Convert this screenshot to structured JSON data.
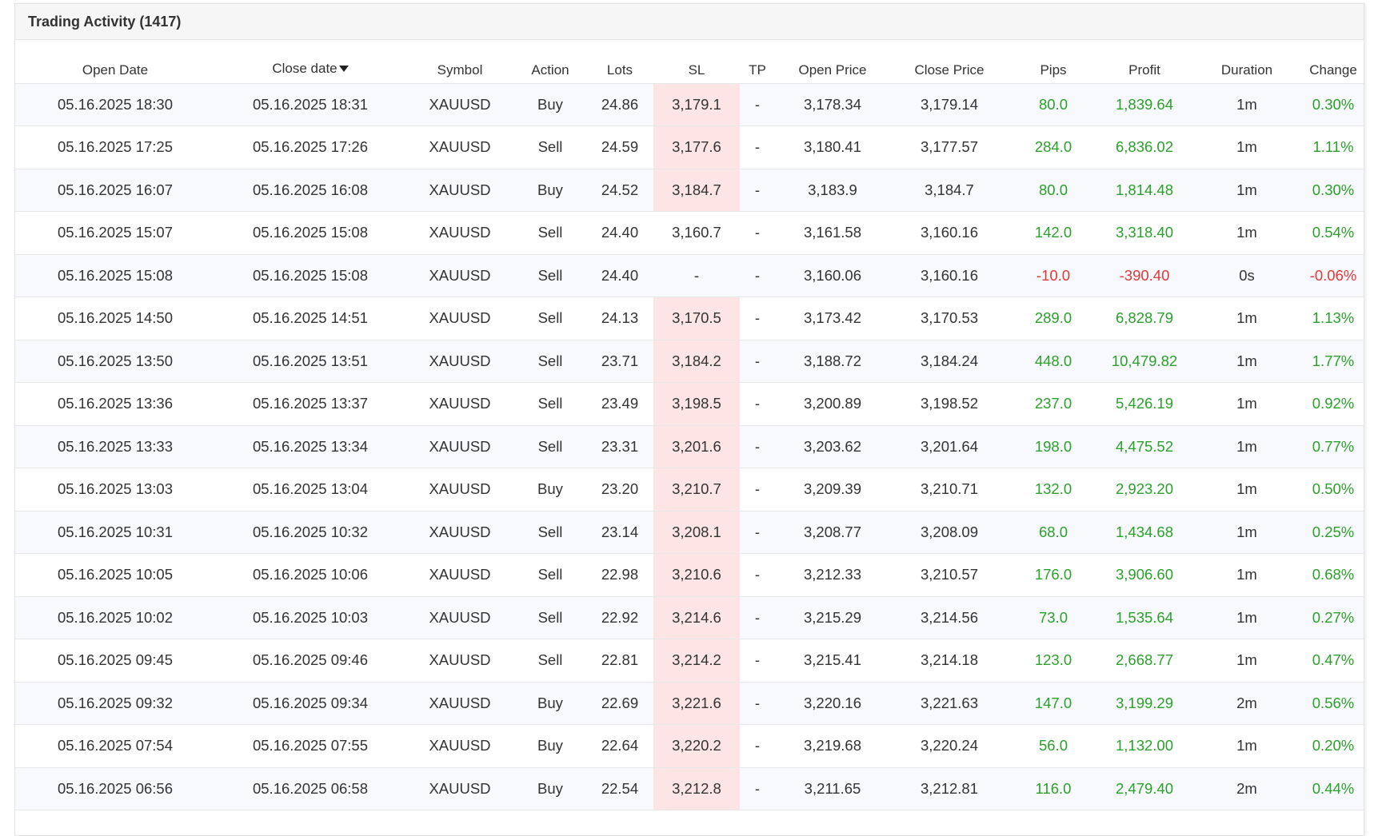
{
  "panel": {
    "title": "Trading Activity (1417)"
  },
  "colors": {
    "positive": "#2aa12a",
    "negative": "#e03a3a",
    "sl_highlight": "#fde5e5",
    "header_bg": "#f6f6f6"
  },
  "icons": {
    "sort": "caret-down-icon"
  },
  "table": {
    "headers": {
      "open_date": "Open Date",
      "close_date": "Close date",
      "symbol": "Symbol",
      "action": "Action",
      "lots": "Lots",
      "sl": "SL",
      "tp": "TP",
      "open_price": "Open Price",
      "close_price": "Close Price",
      "pips": "Pips",
      "profit": "Profit",
      "duration": "Duration",
      "change": "Change"
    },
    "rows": [
      {
        "open_date": "05.16.2025 18:30",
        "close_date": "05.16.2025 18:31",
        "symbol": "XAUUSD",
        "action": "Buy",
        "lots": "24.86",
        "sl": "3,179.1",
        "sl_hit": true,
        "tp": "-",
        "open_price": "3,178.34",
        "close_price": "3,179.14",
        "pips": "80.0",
        "profit": "1,839.64",
        "duration": "1m",
        "change": "0.30%",
        "positive": true
      },
      {
        "open_date": "05.16.2025 17:25",
        "close_date": "05.16.2025 17:26",
        "symbol": "XAUUSD",
        "action": "Sell",
        "lots": "24.59",
        "sl": "3,177.6",
        "sl_hit": true,
        "tp": "-",
        "open_price": "3,180.41",
        "close_price": "3,177.57",
        "pips": "284.0",
        "profit": "6,836.02",
        "duration": "1m",
        "change": "1.11%",
        "positive": true
      },
      {
        "open_date": "05.16.2025 16:07",
        "close_date": "05.16.2025 16:08",
        "symbol": "XAUUSD",
        "action": "Buy",
        "lots": "24.52",
        "sl": "3,184.7",
        "sl_hit": true,
        "tp": "-",
        "open_price": "3,183.9",
        "close_price": "3,184.7",
        "pips": "80.0",
        "profit": "1,814.48",
        "duration": "1m",
        "change": "0.30%",
        "positive": true
      },
      {
        "open_date": "05.16.2025 15:07",
        "close_date": "05.16.2025 15:08",
        "symbol": "XAUUSD",
        "action": "Sell",
        "lots": "24.40",
        "sl": "3,160.7",
        "sl_hit": false,
        "tp": "-",
        "open_price": "3,161.58",
        "close_price": "3,160.16",
        "pips": "142.0",
        "profit": "3,318.40",
        "duration": "1m",
        "change": "0.54%",
        "positive": true
      },
      {
        "open_date": "05.16.2025 15:08",
        "close_date": "05.16.2025 15:08",
        "symbol": "XAUUSD",
        "action": "Sell",
        "lots": "24.40",
        "sl": "-",
        "sl_hit": false,
        "tp": "-",
        "open_price": "3,160.06",
        "close_price": "3,160.16",
        "pips": "-10.0",
        "profit": "-390.40",
        "duration": "0s",
        "change": "-0.06%",
        "positive": false
      },
      {
        "open_date": "05.16.2025 14:50",
        "close_date": "05.16.2025 14:51",
        "symbol": "XAUUSD",
        "action": "Sell",
        "lots": "24.13",
        "sl": "3,170.5",
        "sl_hit": true,
        "tp": "-",
        "open_price": "3,173.42",
        "close_price": "3,170.53",
        "pips": "289.0",
        "profit": "6,828.79",
        "duration": "1m",
        "change": "1.13%",
        "positive": true
      },
      {
        "open_date": "05.16.2025 13:50",
        "close_date": "05.16.2025 13:51",
        "symbol": "XAUUSD",
        "action": "Sell",
        "lots": "23.71",
        "sl": "3,184.2",
        "sl_hit": true,
        "tp": "-",
        "open_price": "3,188.72",
        "close_price": "3,184.24",
        "pips": "448.0",
        "profit": "10,479.82",
        "duration": "1m",
        "change": "1.77%",
        "positive": true
      },
      {
        "open_date": "05.16.2025 13:36",
        "close_date": "05.16.2025 13:37",
        "symbol": "XAUUSD",
        "action": "Sell",
        "lots": "23.49",
        "sl": "3,198.5",
        "sl_hit": true,
        "tp": "-",
        "open_price": "3,200.89",
        "close_price": "3,198.52",
        "pips": "237.0",
        "profit": "5,426.19",
        "duration": "1m",
        "change": "0.92%",
        "positive": true
      },
      {
        "open_date": "05.16.2025 13:33",
        "close_date": "05.16.2025 13:34",
        "symbol": "XAUUSD",
        "action": "Sell",
        "lots": "23.31",
        "sl": "3,201.6",
        "sl_hit": true,
        "tp": "-",
        "open_price": "3,203.62",
        "close_price": "3,201.64",
        "pips": "198.0",
        "profit": "4,475.52",
        "duration": "1m",
        "change": "0.77%",
        "positive": true
      },
      {
        "open_date": "05.16.2025 13:03",
        "close_date": "05.16.2025 13:04",
        "symbol": "XAUUSD",
        "action": "Buy",
        "lots": "23.20",
        "sl": "3,210.7",
        "sl_hit": true,
        "tp": "-",
        "open_price": "3,209.39",
        "close_price": "3,210.71",
        "pips": "132.0",
        "profit": "2,923.20",
        "duration": "1m",
        "change": "0.50%",
        "positive": true
      },
      {
        "open_date": "05.16.2025 10:31",
        "close_date": "05.16.2025 10:32",
        "symbol": "XAUUSD",
        "action": "Sell",
        "lots": "23.14",
        "sl": "3,208.1",
        "sl_hit": true,
        "tp": "-",
        "open_price": "3,208.77",
        "close_price": "3,208.09",
        "pips": "68.0",
        "profit": "1,434.68",
        "duration": "1m",
        "change": "0.25%",
        "positive": true
      },
      {
        "open_date": "05.16.2025 10:05",
        "close_date": "05.16.2025 10:06",
        "symbol": "XAUUSD",
        "action": "Sell",
        "lots": "22.98",
        "sl": "3,210.6",
        "sl_hit": true,
        "tp": "-",
        "open_price": "3,212.33",
        "close_price": "3,210.57",
        "pips": "176.0",
        "profit": "3,906.60",
        "duration": "1m",
        "change": "0.68%",
        "positive": true
      },
      {
        "open_date": "05.16.2025 10:02",
        "close_date": "05.16.2025 10:03",
        "symbol": "XAUUSD",
        "action": "Sell",
        "lots": "22.92",
        "sl": "3,214.6",
        "sl_hit": true,
        "tp": "-",
        "open_price": "3,215.29",
        "close_price": "3,214.56",
        "pips": "73.0",
        "profit": "1,535.64",
        "duration": "1m",
        "change": "0.27%",
        "positive": true
      },
      {
        "open_date": "05.16.2025 09:45",
        "close_date": "05.16.2025 09:46",
        "symbol": "XAUUSD",
        "action": "Sell",
        "lots": "22.81",
        "sl": "3,214.2",
        "sl_hit": true,
        "tp": "-",
        "open_price": "3,215.41",
        "close_price": "3,214.18",
        "pips": "123.0",
        "profit": "2,668.77",
        "duration": "1m",
        "change": "0.47%",
        "positive": true
      },
      {
        "open_date": "05.16.2025 09:32",
        "close_date": "05.16.2025 09:34",
        "symbol": "XAUUSD",
        "action": "Buy",
        "lots": "22.69",
        "sl": "3,221.6",
        "sl_hit": true,
        "tp": "-",
        "open_price": "3,220.16",
        "close_price": "3,221.63",
        "pips": "147.0",
        "profit": "3,199.29",
        "duration": "2m",
        "change": "0.56%",
        "positive": true
      },
      {
        "open_date": "05.16.2025 07:54",
        "close_date": "05.16.2025 07:55",
        "symbol": "XAUUSD",
        "action": "Buy",
        "lots": "22.64",
        "sl": "3,220.2",
        "sl_hit": true,
        "tp": "-",
        "open_price": "3,219.68",
        "close_price": "3,220.24",
        "pips": "56.0",
        "profit": "1,132.00",
        "duration": "1m",
        "change": "0.20%",
        "positive": true
      },
      {
        "open_date": "05.16.2025 06:56",
        "close_date": "05.16.2025 06:58",
        "symbol": "XAUUSD",
        "action": "Buy",
        "lots": "22.54",
        "sl": "3,212.8",
        "sl_hit": true,
        "tp": "-",
        "open_price": "3,211.65",
        "close_price": "3,212.81",
        "pips": "116.0",
        "profit": "2,479.40",
        "duration": "2m",
        "change": "0.44%",
        "positive": true
      }
    ]
  }
}
